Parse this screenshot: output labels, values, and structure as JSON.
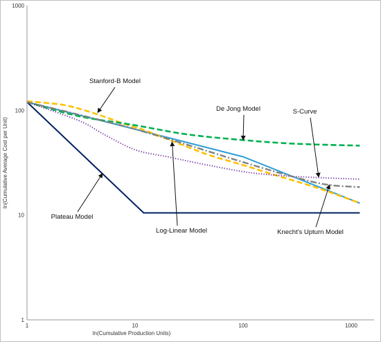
{
  "chart_data": {
    "type": "line",
    "title": "",
    "xlabel": "ln(Cumulative Production Units)",
    "ylabel": "ln(Cumulative Average Cost per Unit)",
    "x_scale": "log",
    "y_scale": "log",
    "xlim": [
      1,
      1300
    ],
    "ylim": [
      1,
      1000
    ],
    "x_ticks": [
      "1",
      "10",
      "100",
      "1000"
    ],
    "y_ticks": [
      "1",
      "10",
      "100",
      "1000"
    ],
    "grid": false,
    "legend": "none",
    "series": [
      {
        "name": "Plateau Model",
        "color": "#002060",
        "style": "solid",
        "x": [
          1,
          12,
          1200
        ],
        "y": [
          120,
          10.5,
          10.5
        ]
      },
      {
        "name": "Log-Linear Model",
        "color": "#2e9ed6",
        "style": "solid",
        "x": [
          1,
          10,
          100,
          1000,
          1200
        ],
        "y": [
          120,
          66,
          36,
          14,
          13
        ]
      },
      {
        "name": "Stanford-B Model",
        "color": "#ffc000",
        "style": "dashed",
        "x": [
          1,
          2,
          3,
          5,
          8,
          12,
          20,
          30,
          50,
          100,
          200,
          500,
          1200
        ],
        "y": [
          122,
          114,
          104,
          88,
          74,
          65,
          53,
          45,
          37,
          30,
          24,
          18,
          13
        ]
      },
      {
        "name": "De Jong Model",
        "color": "#00b050",
        "style": "dashed",
        "x": [
          1,
          3,
          10,
          30,
          100,
          300,
          1200
        ],
        "y": [
          120,
          88,
          72,
          59,
          52,
          48,
          46
        ]
      },
      {
        "name": "S-Curve",
        "color": "#7030a0",
        "style": "dotted",
        "x": [
          1,
          3,
          5,
          10,
          20,
          40,
          100,
          200,
          400,
          1200
        ],
        "y": [
          120,
          80,
          60,
          42,
          36,
          31,
          26,
          24,
          23,
          22
        ]
      },
      {
        "name": "Knecht's Upturn Model",
        "color": "#808080",
        "style": "dash-dot",
        "x": [
          1,
          10,
          100,
          300,
          600,
          1200
        ],
        "y": [
          120,
          66,
          32,
          23,
          19.5,
          18.5
        ]
      }
    ],
    "annotations": [
      {
        "text": "Stanford-B Model",
        "target_x": 4.5,
        "target_y": 95
      },
      {
        "text": "De Jong Model",
        "target_x": 100,
        "target_y": 52
      },
      {
        "text": "S-Curve",
        "target_x": 500,
        "target_y": 23
      },
      {
        "text": "Plateau Model",
        "target_x": 5,
        "target_y": 25
      },
      {
        "text": "Log-Linear Model",
        "target_x": 22,
        "target_y": 50
      },
      {
        "text": "Knecht's Upturn Model",
        "target_x": 630,
        "target_y": 19.5
      }
    ]
  }
}
